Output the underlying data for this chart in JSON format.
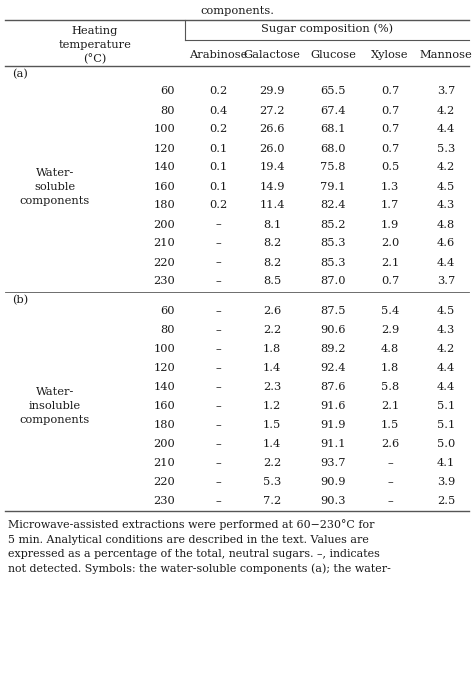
{
  "header_top_text": "components.",
  "col1_header": "Heating\ntemperature\n(°C)",
  "col2_header": "Sugar composition (%)",
  "sub_headers": [
    "Arabinose",
    "Galactose",
    "Glucose",
    "Xylose",
    "Mannose"
  ],
  "section_a_label": "(a)",
  "section_b_label": "(b)",
  "group_a_label": "Water-\nsoluble\ncomponents",
  "group_b_label": "Water-\ninsoluble\ncomponents",
  "section_a": {
    "temps": [
      "60",
      "80",
      "100",
      "120",
      "140",
      "160",
      "180",
      "200",
      "210",
      "220",
      "230"
    ],
    "arabinose": [
      "0.2",
      "0.4",
      "0.2",
      "0.1",
      "0.1",
      "0.1",
      "0.2",
      "–",
      "–",
      "–",
      "–"
    ],
    "galactose": [
      "29.9",
      "27.2",
      "26.6",
      "26.0",
      "19.4",
      "14.9",
      "11.4",
      "8.1",
      "8.2",
      "8.2",
      "8.5"
    ],
    "glucose": [
      "65.5",
      "67.4",
      "68.1",
      "68.0",
      "75.8",
      "79.1",
      "82.4",
      "85.2",
      "85.3",
      "85.3",
      "87.0"
    ],
    "xylose": [
      "0.7",
      "0.7",
      "0.7",
      "0.7",
      "0.5",
      "1.3",
      "1.7",
      "1.9",
      "2.0",
      "2.1",
      "0.7"
    ],
    "mannose": [
      "3.7",
      "4.2",
      "4.4",
      "5.3",
      "4.2",
      "4.5",
      "4.3",
      "4.8",
      "4.6",
      "4.4",
      "3.7"
    ]
  },
  "section_b": {
    "temps": [
      "60",
      "80",
      "100",
      "120",
      "140",
      "160",
      "180",
      "200",
      "210",
      "220",
      "230"
    ],
    "arabinose": [
      "–",
      "–",
      "–",
      "–",
      "–",
      "–",
      "–",
      "–",
      "–",
      "–",
      "–"
    ],
    "galactose": [
      "2.6",
      "2.2",
      "1.8",
      "1.4",
      "2.3",
      "1.2",
      "1.5",
      "1.4",
      "2.2",
      "5.3",
      "7.2"
    ],
    "glucose": [
      "87.5",
      "90.6",
      "89.2",
      "92.4",
      "87.6",
      "91.6",
      "91.9",
      "91.1",
      "93.7",
      "90.9",
      "90.3"
    ],
    "xylose": [
      "5.4",
      "2.9",
      "4.8",
      "1.8",
      "5.8",
      "2.1",
      "1.5",
      "2.6",
      "–",
      "–",
      "–"
    ],
    "mannose": [
      "4.5",
      "4.3",
      "4.2",
      "4.4",
      "4.4",
      "5.1",
      "5.1",
      "5.0",
      "4.1",
      "3.9",
      "2.5"
    ]
  },
  "footnote": "Microwave-assisted extractions were performed at 60−230°C for\n5 min. Analytical conditions are described in the text. Values are\nexpressed as a percentage of the total, neutral sugars. –, indicates\nnot detected. Symbols: the water-soluble components (a); the water-",
  "bg_color": "#ffffff",
  "text_color": "#1a1a1a",
  "line_color": "#555555",
  "fontsize": 8.2,
  "footnote_fontsize": 7.9,
  "font_family": "DejaVu Serif"
}
